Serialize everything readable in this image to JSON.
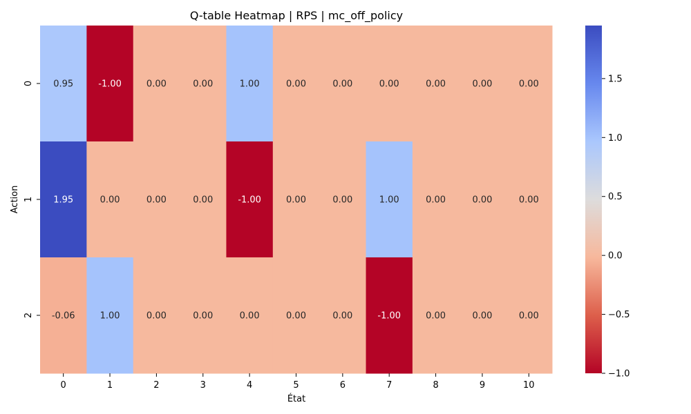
{
  "chart_data": {
    "type": "heatmap",
    "title": "Q-table Heatmap | RPS | mc_off_policy",
    "xlabel": "État",
    "ylabel": "Action",
    "x_categories": [
      "0",
      "1",
      "2",
      "3",
      "4",
      "5",
      "6",
      "7",
      "8",
      "9",
      "10"
    ],
    "y_categories": [
      "0",
      "1",
      "2"
    ],
    "values": [
      [
        0.95,
        -1.0,
        0.0,
        0.0,
        1.0,
        0.0,
        0.0,
        0.0,
        0.0,
        0.0,
        0.0
      ],
      [
        1.95,
        0.0,
        0.0,
        0.0,
        -1.0,
        0.0,
        0.0,
        1.0,
        0.0,
        0.0,
        0.0
      ],
      [
        -0.06,
        1.0,
        0.0,
        0.0,
        0.0,
        0.0,
        0.0,
        -1.0,
        0.0,
        0.0,
        0.0
      ]
    ],
    "value_labels": [
      [
        "0.95",
        "-1.00",
        "0.00",
        "0.00",
        "1.00",
        "0.00",
        "0.00",
        "0.00",
        "0.00",
        "0.00",
        "0.00"
      ],
      [
        "1.95",
        "0.00",
        "0.00",
        "0.00",
        "-1.00",
        "0.00",
        "0.00",
        "1.00",
        "0.00",
        "0.00",
        "0.00"
      ],
      [
        "-0.06",
        "1.00",
        "0.00",
        "0.00",
        "0.00",
        "0.00",
        "0.00",
        "-1.00",
        "0.00",
        "0.00",
        "0.00"
      ]
    ],
    "colormap": "coolwarm_r",
    "vmin": -1.0,
    "vmax": 1.95,
    "colorbar_ticks": [
      -1.0,
      -0.5,
      0.0,
      0.5,
      1.0,
      1.5
    ],
    "colorbar_tick_labels": [
      "−1.0",
      "−0.5",
      "0.0",
      "0.5",
      "1.0",
      "1.5"
    ],
    "colorbar_stops": [
      "#b40426",
      "#dd5f4b",
      "#f7b89c",
      "#dddcdc",
      "#aac7fd",
      "#6788ee",
      "#3b4cc0"
    ]
  }
}
